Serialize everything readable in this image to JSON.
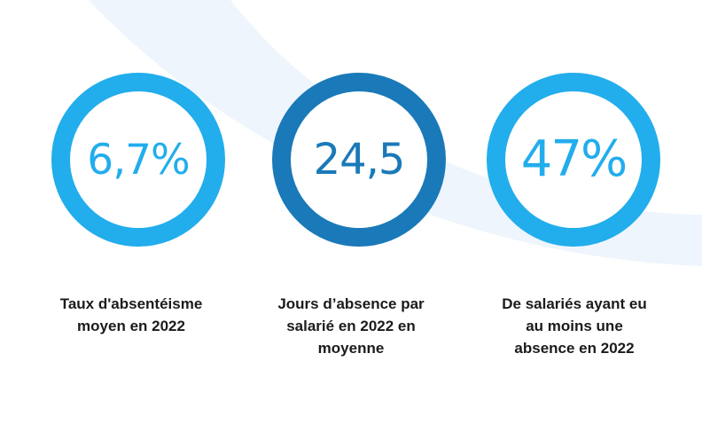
{
  "colors": {
    "background": "#ffffff",
    "background_arc": "#eef5fc",
    "light_blue": "#22adec",
    "dark_blue": "#1a79b8",
    "caption_text": "#1b1b1b"
  },
  "stats": [
    {
      "value": "6,7%",
      "ring_color": "#22adec",
      "value_color": "#22adec",
      "caption_lines": [
        "Taux d'absentéisme",
        "moyen en 2022"
      ]
    },
    {
      "value": "24,5",
      "ring_color": "#1a79b8",
      "value_color": "#1a79b8",
      "caption_lines": [
        "Jours d’absence par",
        "salarié en 2022 en",
        "moyenne"
      ]
    },
    {
      "value": "47%",
      "ring_color": "#22adec",
      "value_color": "#22adec",
      "caption_lines": [
        "De salariés ayant eu",
        "au moins une",
        "absence en 2022"
      ]
    }
  ]
}
